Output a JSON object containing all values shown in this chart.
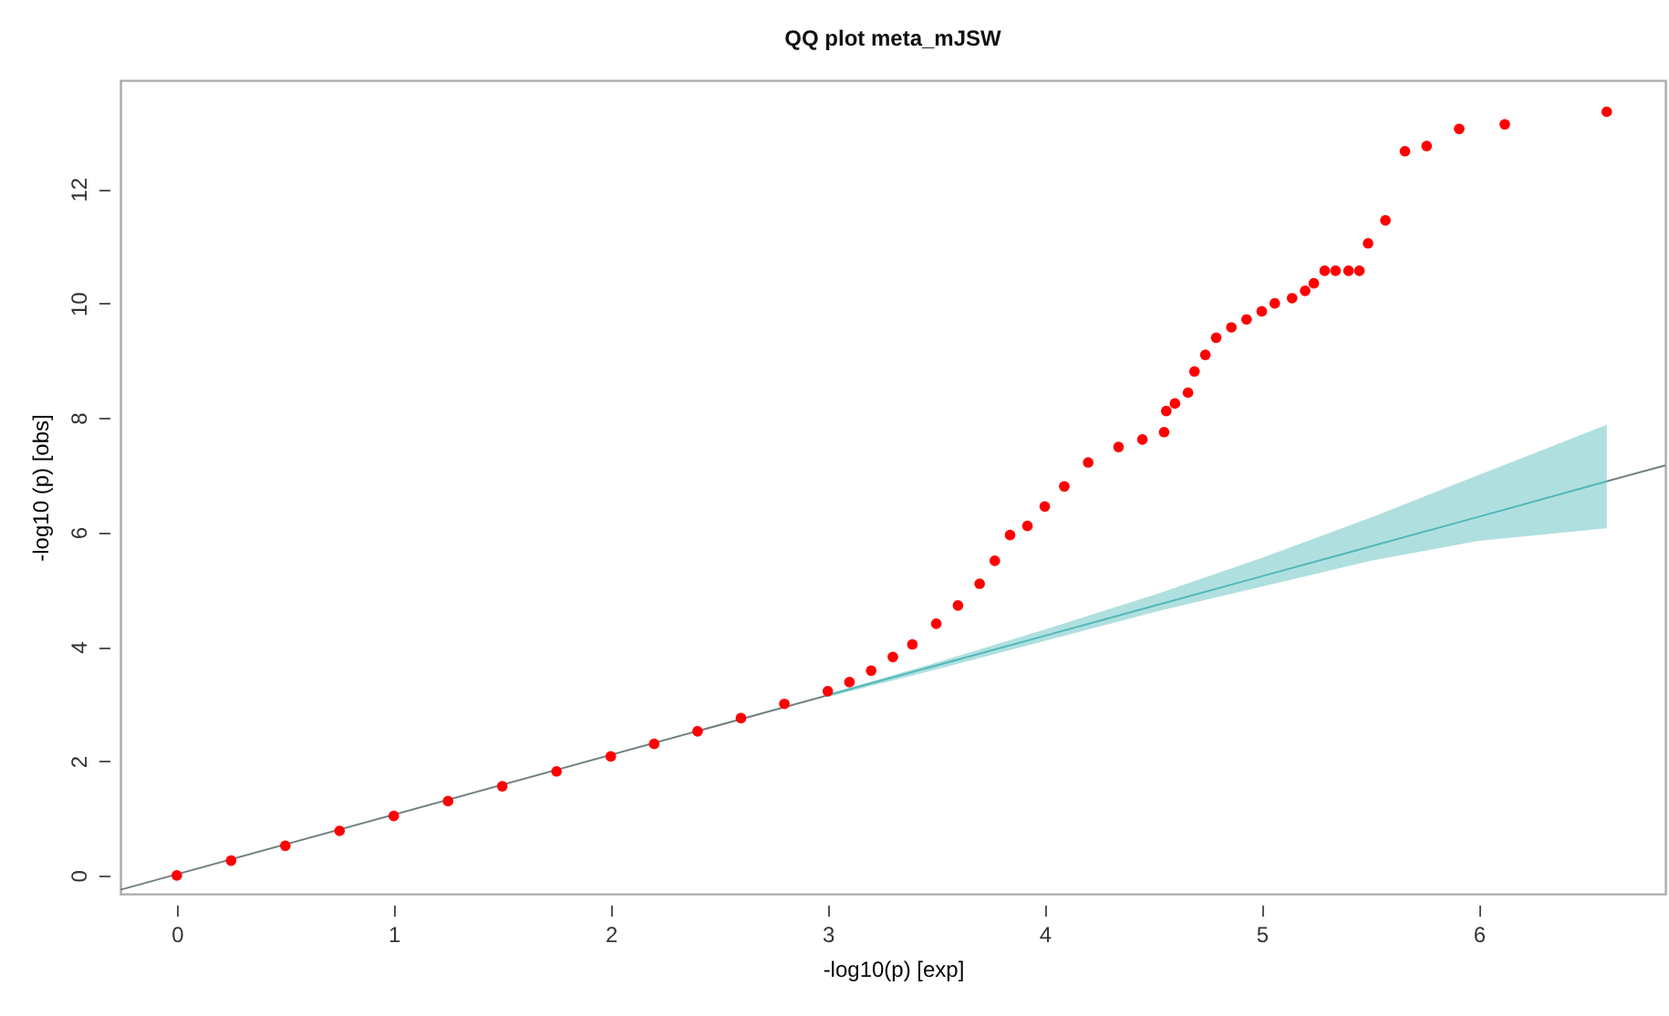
{
  "chart_data": {
    "type": "scatter",
    "title": "QQ plot meta_mJSW",
    "xlabel": "-log10(p) [exp]",
    "ylabel": "-log10 (p) [obs]",
    "xlim": [
      -0.26,
      6.86
    ],
    "ylim": [
      -0.32,
      13.9
    ],
    "xticks": [
      0,
      1,
      2,
      3,
      4,
      5,
      6
    ],
    "yticks": [
      0,
      2,
      4,
      6,
      8,
      10,
      12
    ],
    "grid": false,
    "marker": "circle",
    "series": [
      {
        "type": "line",
        "color": "#4fb8b8",
        "marker": "none",
        "x": [
          3.0,
          3.5,
          4.0,
          4.5,
          5.0,
          5.5,
          6.0,
          6.59
        ],
        "values": [
          3.15,
          3.67,
          4.19,
          4.71,
          5.23,
          5.75,
          6.27,
          6.89
        ],
        "lower": [
          3.12,
          3.6,
          4.1,
          4.6,
          5.05,
          5.5,
          5.85,
          6.07
        ],
        "upper": [
          3.17,
          3.72,
          4.3,
          4.9,
          5.55,
          6.25,
          7.0,
          7.88
        ]
      },
      {
        "type": "line",
        "color": "#6f7f7f",
        "marker": "none",
        "line_style": "solid",
        "x": [
          -0.26,
          3.0,
          4.8,
          6.59,
          6.86
        ],
        "values": [
          -0.25,
          3.15,
          null,
          6.89,
          7.17
        ]
      },
      {
        "color": "#ff0000",
        "x": [
          0,
          0.25,
          0.5,
          0.75,
          1.0,
          1.25,
          1.5,
          1.75,
          2.0,
          2.2,
          2.4,
          2.6,
          2.8,
          3.0,
          3.1,
          3.2,
          3.3,
          3.39,
          3.5,
          3.6,
          3.7,
          3.77,
          3.84,
          3.92,
          4.0,
          4.09,
          4.2,
          4.34,
          4.45,
          4.55,
          4.56,
          4.6,
          4.66,
          4.69,
          4.74,
          4.79,
          4.86,
          4.93,
          5.0,
          5.06,
          5.14,
          5.2,
          5.24,
          5.29,
          5.34,
          5.4,
          5.45,
          5.49,
          5.57,
          5.66,
          5.76,
          5.91,
          6.12,
          6.59
        ],
        "values": [
          0,
          0.26,
          0.52,
          0.78,
          1.04,
          1.3,
          1.56,
          1.82,
          2.08,
          2.3,
          2.52,
          2.75,
          3.0,
          3.22,
          3.38,
          3.58,
          3.82,
          4.04,
          4.4,
          4.72,
          5.1,
          5.5,
          5.95,
          6.11,
          6.45,
          6.8,
          7.22,
          7.49,
          7.62,
          7.75,
          8.12,
          8.25,
          8.44,
          8.81,
          9.1,
          9.4,
          9.58,
          9.72,
          9.86,
          10.0,
          10.09,
          10.22,
          10.35,
          10.57,
          10.57,
          10.57,
          10.57,
          11.05,
          11.45,
          12.66,
          12.75,
          13.05,
          13.13,
          13.35
        ]
      }
    ]
  }
}
